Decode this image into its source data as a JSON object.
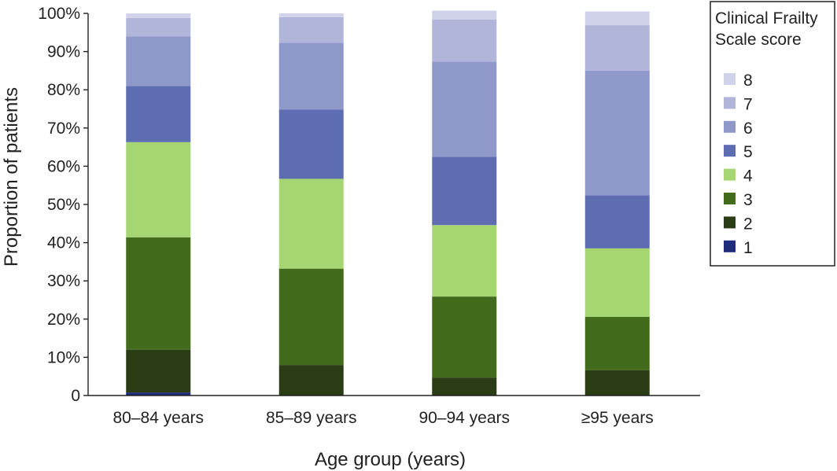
{
  "chart_data": {
    "type": "bar",
    "stacked": true,
    "title": "",
    "xlabel": "Age group (years)",
    "ylabel": "Proportion of patients",
    "ylim": [
      0,
      100
    ],
    "yticks": [
      0,
      10,
      20,
      30,
      40,
      50,
      60,
      70,
      80,
      90,
      100
    ],
    "ytick_labels": [
      "0",
      "10%",
      "20%",
      "30%",
      "40%",
      "50%",
      "60%",
      "70%",
      "80%",
      "90%",
      "100%"
    ],
    "categories": [
      "80–84 years",
      "85–89 years",
      "90–94 years",
      "≥95 years"
    ],
    "legend": {
      "title_lines": [
        "Clinical Frailty",
        "Scale score"
      ],
      "placement": "top-right"
    },
    "series": [
      {
        "name": "1",
        "color": "#1f2a7a",
        "values": [
          0.8,
          0.0,
          0.0,
          0.0
        ]
      },
      {
        "name": "2",
        "color": "#2b3d14",
        "values": [
          11.2,
          8.0,
          4.7,
          6.6
        ]
      },
      {
        "name": "3",
        "color": "#436b1c",
        "values": [
          29.4,
          25.2,
          21.2,
          14.0
        ]
      },
      {
        "name": "4",
        "color": "#a5d672",
        "values": [
          24.9,
          23.5,
          18.7,
          17.9
        ]
      },
      {
        "name": "5",
        "color": "#5e6db1",
        "values": [
          14.7,
          18.1,
          17.9,
          13.9
        ]
      },
      {
        "name": "6",
        "color": "#8e98c9",
        "values": [
          13.0,
          17.5,
          24.9,
          32.6
        ]
      },
      {
        "name": "7",
        "color": "#b1b5da",
        "values": [
          4.8,
          6.7,
          11.0,
          11.9
        ]
      },
      {
        "name": "8",
        "color": "#d0d2ea",
        "values": [
          1.2,
          1.0,
          2.3,
          3.6
        ]
      }
    ]
  }
}
